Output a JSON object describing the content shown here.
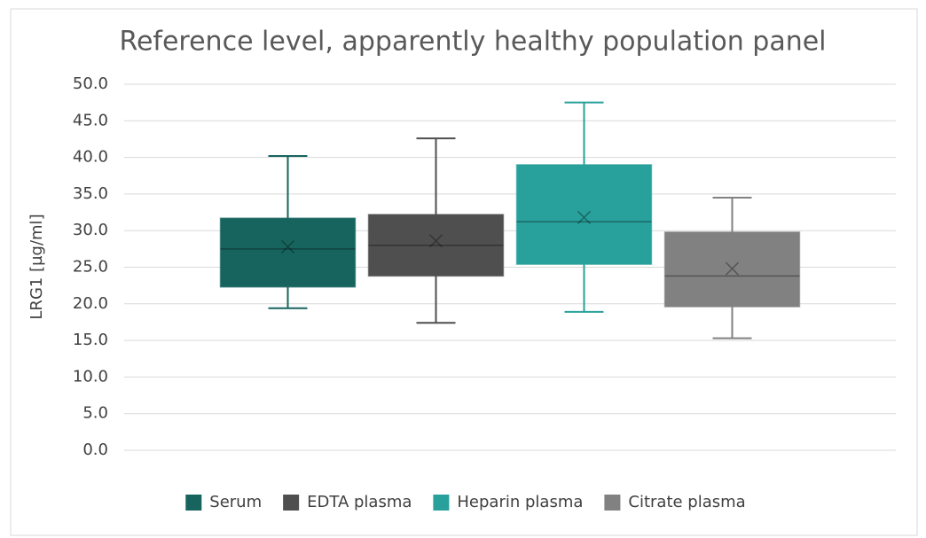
{
  "chart_data": {
    "type": "box",
    "title": "Reference level, apparently healthy population panel",
    "y_label": "LRG1 [µg/ml]",
    "ylim": [
      0,
      50
    ],
    "yticks": [
      {
        "value": 0,
        "label": "0.0"
      },
      {
        "value": 5,
        "label": "5.0"
      },
      {
        "value": 10,
        "label": "10.0"
      },
      {
        "value": 15,
        "label": "15.0"
      },
      {
        "value": 20,
        "label": "20.0"
      },
      {
        "value": 25,
        "label": "25.0"
      },
      {
        "value": 30,
        "label": "30.0"
      },
      {
        "value": 35,
        "label": "35.0"
      },
      {
        "value": 40,
        "label": "40.0"
      },
      {
        "value": 45,
        "label": "45.0"
      },
      {
        "value": 50,
        "label": "50.0"
      }
    ],
    "grid": true,
    "legend": "bottom",
    "series": [
      {
        "name": "Serum",
        "color": "#17645f",
        "min": 19.4,
        "q1": 22.3,
        "median": 27.5,
        "q3": 31.7,
        "max": 40.2,
        "mean": 27.8
      },
      {
        "name": "EDTA plasma",
        "color": "#4f4f4f",
        "min": 17.4,
        "q1": 23.8,
        "median": 28.0,
        "q3": 32.2,
        "max": 42.6,
        "mean": 28.6
      },
      {
        "name": "Heparin plasma",
        "color": "#28a09b",
        "min": 18.9,
        "q1": 25.4,
        "median": 31.2,
        "q3": 39.0,
        "max": 47.5,
        "mean": 31.8
      },
      {
        "name": "Citrate plasma",
        "color": "#818181",
        "min": 15.3,
        "q1": 19.6,
        "median": 23.8,
        "q3": 29.8,
        "max": 34.5,
        "mean": 24.8
      }
    ]
  }
}
